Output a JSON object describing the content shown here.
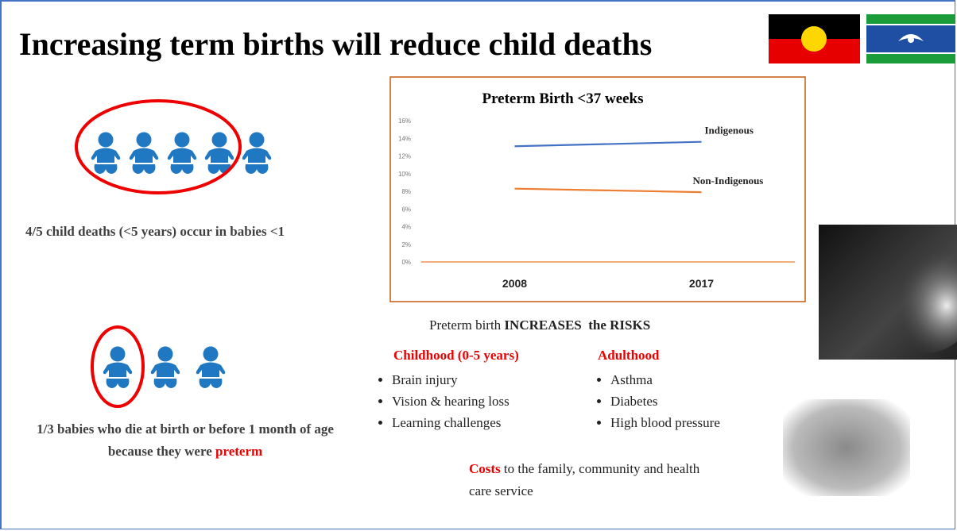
{
  "header": {
    "title": "Increasing term births will reduce child deaths"
  },
  "left": {
    "stat1": "4/5 child deaths (<5 years) occur in babies <1",
    "stat2": "1/3 babies who die at birth or before 1 month of age because they were",
    "stat2_highlight": "preterm"
  },
  "chart_data": {
    "type": "line",
    "title": "Preterm Birth <37 weeks",
    "categories": [
      "2008",
      "2017"
    ],
    "series": [
      {
        "name": "Indigenous",
        "color": "#4472c4",
        "values": [
          13.1,
          13.6
        ]
      },
      {
        "name": "Non-Indigenous",
        "color": "#ed7d31",
        "values": [
          8.3,
          7.9
        ]
      }
    ],
    "ylim": [
      0,
      16
    ],
    "yticks": [
      {
        "value": 0,
        "label": "0%"
      },
      {
        "value": 2,
        "label": "2%"
      },
      {
        "value": 4,
        "label": "4%"
      },
      {
        "value": 6,
        "label": "6%"
      },
      {
        "value": 8,
        "label": "8%"
      },
      {
        "value": 10,
        "label": "10%"
      },
      {
        "value": 12,
        "label": "12%"
      },
      {
        "value": 14,
        "label": "14%"
      },
      {
        "value": 16,
        "label": "16%"
      }
    ]
  },
  "risks": {
    "heading_plain": "Preterm birth",
    "heading_bold": "INCREASES  the RISKS",
    "groups": [
      {
        "title": "Childhood (0-5 years)",
        "items": [
          "Brain injury",
          "Vision & hearing loss",
          "Learning challenges"
        ]
      },
      {
        "title": "Adulthood",
        "items": [
          "Asthma",
          "Diabetes",
          "High blood pressure"
        ]
      }
    ]
  },
  "costs": {
    "highlight": "Costs",
    "text": "to the family, community and health care service"
  }
}
